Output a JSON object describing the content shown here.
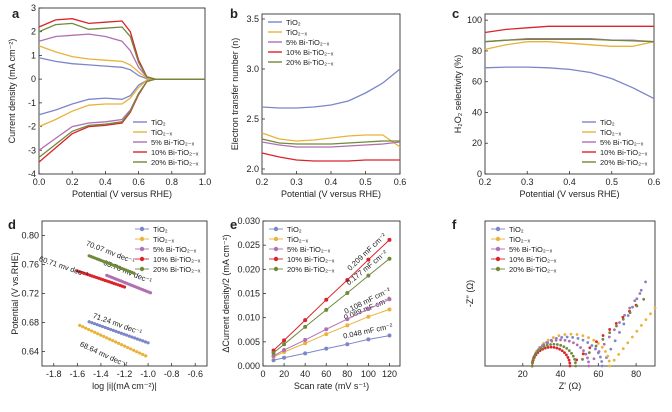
{
  "colors": {
    "TiO2": "#7b86c9",
    "TiO2-x": "#e9b23a",
    "5Bi": "#b16fb3",
    "10Bi": "#d9242c",
    "20Bi": "#70893b"
  },
  "chart_data": [
    {
      "id": "a",
      "letter": "a",
      "type": "line",
      "xlabel": "Potential (V versus RHE)",
      "ylabel": "Current density (mA cm⁻²)",
      "xlim": [
        0.0,
        1.0
      ],
      "ylim": [
        -4,
        3
      ],
      "xticks": [
        0.0,
        0.2,
        0.4,
        0.6,
        0.8,
        1.0
      ],
      "yticks": [
        -4,
        -3,
        -2,
        -1,
        0,
        1,
        2,
        3
      ],
      "xtick_labels": [
        "0.0",
        "0.2",
        "0.4",
        "0.6",
        "0.8",
        "1.0"
      ],
      "ytick_labels": [
        "-4",
        "-3",
        "-2",
        "-1",
        "0",
        "1",
        "2",
        "3"
      ],
      "legend": [
        "TiO₂",
        "TiO₂₋ₓ",
        "5% Bi-TiO₂₋ₓ",
        "10% Bi-TiO₂₋ₓ",
        "20% Bi-TiO₂₋ₓ"
      ],
      "legend_position": "bottom-right",
      "x": [
        0.0,
        0.1,
        0.2,
        0.3,
        0.4,
        0.5,
        0.55,
        0.6,
        0.65,
        0.7,
        0.8,
        1.0
      ],
      "series": [
        {
          "name": "TiO₂",
          "color_key": "TiO2",
          "anodic": [
            0.9,
            0.75,
            0.65,
            0.6,
            0.55,
            0.5,
            0.4,
            0.15,
            0.02,
            0.0,
            0.0,
            0.0
          ],
          "cathodic": [
            -1.5,
            -1.3,
            -1.05,
            -0.85,
            -0.8,
            -0.85,
            -0.7,
            -0.25,
            -0.05,
            0.0,
            0.0,
            0.0
          ]
        },
        {
          "name": "TiO₂₋ₓ",
          "color_key": "TiO2-x",
          "anodic": [
            1.4,
            1.15,
            0.95,
            0.85,
            0.8,
            0.75,
            0.6,
            0.3,
            0.05,
            0.0,
            0.0,
            0.0
          ],
          "cathodic": [
            -2.0,
            -1.7,
            -1.35,
            -1.1,
            -1.05,
            -1.05,
            -0.8,
            -0.35,
            -0.05,
            0.0,
            0.0,
            0.0
          ]
        },
        {
          "name": "5% Bi-TiO₂₋ₓ",
          "color_key": "5Bi",
          "anodic": [
            1.6,
            1.8,
            1.85,
            1.9,
            1.8,
            1.6,
            1.2,
            0.5,
            0.08,
            0.0,
            0.0,
            0.0
          ],
          "cathodic": [
            -3.0,
            -2.5,
            -2.0,
            -1.85,
            -1.8,
            -1.7,
            -1.3,
            -0.6,
            -0.1,
            0.0,
            0.0,
            0.0
          ]
        },
        {
          "name": "10% Bi-TiO₂₋ₓ",
          "color_key": "10Bi",
          "anodic": [
            2.2,
            2.5,
            2.55,
            2.35,
            2.4,
            2.45,
            2.0,
            0.8,
            0.1,
            0.0,
            0.0,
            0.0
          ],
          "cathodic": [
            -3.5,
            -2.9,
            -2.3,
            -2.0,
            -1.95,
            -1.85,
            -1.4,
            -0.65,
            -0.1,
            0.0,
            0.0,
            0.0
          ]
        },
        {
          "name": "20% Bi-TiO₂₋ₓ",
          "color_key": "20Bi",
          "anodic": [
            2.0,
            2.3,
            2.35,
            2.1,
            2.15,
            2.2,
            1.8,
            0.7,
            0.08,
            0.0,
            0.0,
            0.0
          ],
          "cathodic": [
            -3.3,
            -2.75,
            -2.2,
            -1.95,
            -1.9,
            -1.8,
            -1.35,
            -0.6,
            -0.1,
            0.0,
            0.0,
            0.0
          ]
        }
      ]
    },
    {
      "id": "b",
      "letter": "b",
      "type": "line",
      "xlabel": "Potential (V versus RHE)",
      "ylabel": "Electron transfer number (n)",
      "xlim": [
        0.2,
        0.6
      ],
      "ylim": [
        1.95,
        3.55
      ],
      "xticks": [
        0.2,
        0.3,
        0.4,
        0.5,
        0.6
      ],
      "yticks": [
        2.0,
        2.5,
        3.0,
        3.5
      ],
      "xtick_labels": [
        "0.2",
        "0.3",
        "0.4",
        "0.5",
        "0.6"
      ],
      "ytick_labels": [
        "2.0",
        "2.5",
        "3.0",
        "3.5"
      ],
      "legend": [
        "TiO₂",
        "TiO₂₋ₓ",
        "5% Bi-TiO₂₋ₓ",
        "10% Bi-TiO₂₋ₓ",
        "20% Bi-TiO₂₋ₓ"
      ],
      "legend_position": "top-left",
      "x": [
        0.2,
        0.25,
        0.3,
        0.35,
        0.4,
        0.45,
        0.5,
        0.55,
        0.6
      ],
      "series": [
        {
          "name": "TiO₂",
          "color_key": "TiO2",
          "values": [
            2.62,
            2.61,
            2.61,
            2.62,
            2.64,
            2.68,
            2.76,
            2.86,
            3.0
          ]
        },
        {
          "name": "TiO₂₋ₓ",
          "color_key": "TiO2-x",
          "values": [
            2.36,
            2.3,
            2.28,
            2.29,
            2.31,
            2.33,
            2.34,
            2.34,
            2.22
          ]
        },
        {
          "name": "5% Bi-TiO₂₋ₓ",
          "color_key": "5Bi",
          "values": [
            2.27,
            2.24,
            2.22,
            2.22,
            2.22,
            2.23,
            2.24,
            2.25,
            2.27
          ]
        },
        {
          "name": "10% Bi-TiO₂₋ₓ",
          "color_key": "10Bi",
          "values": [
            2.16,
            2.12,
            2.09,
            2.08,
            2.08,
            2.08,
            2.09,
            2.09,
            2.09
          ]
        },
        {
          "name": "20% Bi-TiO₂₋ₓ",
          "color_key": "20Bi",
          "values": [
            2.3,
            2.26,
            2.25,
            2.25,
            2.25,
            2.26,
            2.27,
            2.28,
            2.28
          ]
        }
      ]
    },
    {
      "id": "c",
      "letter": "c",
      "type": "line",
      "xlabel": "Potential (V versus RHE)",
      "ylabel": "H₂O₂ selectivity (%)",
      "xlim": [
        0.2,
        0.6
      ],
      "ylim": [
        0,
        104
      ],
      "xticks": [
        0.2,
        0.3,
        0.4,
        0.5,
        0.6
      ],
      "yticks": [
        0,
        20,
        40,
        60,
        80,
        100
      ],
      "xtick_labels": [
        "0.2",
        "0.3",
        "0.4",
        "0.5",
        "0.6"
      ],
      "ytick_labels": [
        "0",
        "20",
        "40",
        "60",
        "80",
        "100"
      ],
      "legend": [
        "TiO₂",
        "TiO₂₋ₓ",
        "5% Bi-TiO₂₋ₓ",
        "10% Bi-TiO₂₋ₓ",
        "20% Bi-TiO₂₋ₓ"
      ],
      "legend_position": "bottom-right",
      "x": [
        0.2,
        0.25,
        0.3,
        0.35,
        0.4,
        0.45,
        0.5,
        0.55,
        0.6
      ],
      "series": [
        {
          "name": "TiO₂",
          "color_key": "TiO2",
          "values": [
            69,
            69.5,
            69.5,
            69,
            68,
            66,
            62,
            56,
            49
          ]
        },
        {
          "name": "TiO₂₋ₓ",
          "color_key": "TiO2-x",
          "values": [
            81,
            84,
            86,
            86,
            85,
            84,
            83,
            83,
            86
          ]
        },
        {
          "name": "5% Bi-TiO₂₋ₓ",
          "color_key": "5Bi",
          "values": [
            86,
            87,
            88,
            88,
            88,
            88,
            87,
            87,
            86
          ]
        },
        {
          "name": "10% Bi-TiO₂₋ₓ",
          "color_key": "10Bi",
          "values": [
            92,
            94,
            95,
            96,
            96,
            96,
            96,
            96,
            96
          ]
        },
        {
          "name": "20% Bi-TiO₂₋ₓ",
          "color_key": "20Bi",
          "values": [
            86,
            87,
            87.5,
            87.5,
            87.5,
            87.5,
            87,
            86.5,
            86
          ]
        }
      ]
    },
    {
      "id": "d",
      "letter": "d",
      "type": "scatter",
      "xlabel": "log |i|(mA cm⁻²)|",
      "ylabel": "Potential (V vs.RHE)",
      "xlim": [
        -1.9,
        -0.5
      ],
      "ylim": [
        0.62,
        0.82
      ],
      "xticks": [
        -1.8,
        -1.6,
        -1.4,
        -1.2,
        -1.0,
        -0.8,
        -0.6
      ],
      "yticks": [
        0.64,
        0.68,
        0.72,
        0.76,
        0.8
      ],
      "xtick_labels": [
        "-1.8",
        "-1.6",
        "-1.4",
        "-1.2",
        "-1.0",
        "-0.8",
        "-0.6"
      ],
      "ytick_labels": [
        "0.64",
        "0.68",
        "0.72",
        "0.76",
        "0.80"
      ],
      "legend": [
        "TiO₂",
        "TiO₂₋ₓ",
        "5% Bi-TiO₂₋ₓ",
        "10% Bi-TiO₂₋ₓ",
        "20% Bi-TiO₂₋ₓ"
      ],
      "legend_position": "top-right",
      "series": [
        {
          "name": "TiO₂",
          "color_key": "TiO2",
          "x_range": [
            -1.5,
            -1.0
          ],
          "y_range": [
            0.681,
            0.652
          ],
          "annotation": "71.24 mv dec⁻¹"
        },
        {
          "name": "TiO₂₋ₓ",
          "color_key": "TiO2-x",
          "x_range": [
            -1.58,
            -1.02
          ],
          "y_range": [
            0.676,
            0.634
          ],
          "annotation": "68.64 mv dec⁻¹"
        },
        {
          "name": "5% Bi-TiO₂₋ₓ",
          "color_key": "5Bi",
          "x_range": [
            -1.35,
            -0.98
          ],
          "y_range": [
            0.745,
            0.721
          ],
          "annotation": "65.76 mv dec⁻¹"
        },
        {
          "name": "10% Bi-TiO₂₋ₓ",
          "color_key": "10Bi",
          "x_range": [
            -1.6,
            -1.2
          ],
          "y_range": [
            0.751,
            0.729
          ],
          "annotation": "60.71 mv dec⁻¹"
        },
        {
          "name": "20% Bi-TiO₂₋ₓ",
          "color_key": "20Bi",
          "x_range": [
            -1.5,
            -1.12
          ],
          "y_range": [
            0.772,
            0.748
          ],
          "annotation": "70.07 mv dec⁻¹"
        }
      ]
    },
    {
      "id": "e",
      "letter": "e",
      "type": "scatter",
      "xlabel": "Scan rate (mV s⁻¹)",
      "ylabel": "ΔCurrent density/2 (mA cm⁻²)",
      "xlim": [
        0,
        130
      ],
      "ylim": [
        0,
        0.03
      ],
      "xticks": [
        0,
        20,
        40,
        60,
        80,
        100,
        120
      ],
      "yticks": [
        0.0,
        0.005,
        0.01,
        0.015,
        0.02,
        0.025,
        0.03
      ],
      "xtick_labels": [
        "0",
        "20",
        "40",
        "60",
        "80",
        "100",
        "120"
      ],
      "ytick_labels": [
        "0.000",
        "0.005",
        "0.010",
        "0.015",
        "0.020",
        "0.025",
        "0.030"
      ],
      "legend": [
        "TiO₂",
        "TiO₂₋ₓ",
        "5% Bi-TiO₂₋ₓ",
        "10% Bi-TiO₂₋ₓ",
        "20% Bi-TiO₂₋ₓ"
      ],
      "legend_position": "top-left",
      "x": [
        10,
        20,
        40,
        60,
        80,
        100,
        120
      ],
      "series": [
        {
          "name": "TiO₂",
          "color_key": "TiO2",
          "values": [
            0.0012,
            0.0017,
            0.0026,
            0.0036,
            0.0045,
            0.0055,
            0.0063
          ],
          "annotation": "0.048 mF cm⁻²"
        },
        {
          "name": "TiO₂₋ₓ",
          "color_key": "TiO2-x",
          "values": [
            0.0019,
            0.0029,
            0.0047,
            0.0066,
            0.0084,
            0.0102,
            0.0117
          ],
          "annotation": "0.089 mF cm⁻²"
        },
        {
          "name": "5% Bi-TiO₂₋ₓ",
          "color_key": "5Bi",
          "values": [
            0.0021,
            0.0033,
            0.0054,
            0.0076,
            0.0097,
            0.0118,
            0.0138
          ],
          "annotation": "0.108 mF cm⁻²"
        },
        {
          "name": "10% Bi-TiO₂₋ₓ",
          "color_key": "10Bi",
          "values": [
            0.0032,
            0.0053,
            0.0095,
            0.0137,
            0.0178,
            0.022,
            0.0261
          ],
          "annotation": "0.209 mF cm⁻²"
        },
        {
          "name": "20% Bi-TiO₂₋ₓ",
          "color_key": "20Bi",
          "values": [
            0.0027,
            0.0045,
            0.0081,
            0.0116,
            0.0151,
            0.0187,
            0.0222
          ],
          "annotation": "0.177 mF cm⁻²"
        }
      ]
    },
    {
      "id": "f",
      "letter": "f",
      "type": "scatter",
      "xlabel": "Z' (Ω)",
      "ylabel": "-Z'' (Ω)",
      "xlim": [
        0,
        90
      ],
      "ylim": [
        0,
        100
      ],
      "xticks": [
        20,
        40,
        60,
        80
      ],
      "yticks": [],
      "xtick_labels": [
        "20",
        "40",
        "60",
        "80"
      ],
      "ytick_labels": [],
      "legend": [
        "TiO₂",
        "TiO₂₋ₓ",
        "5% Bi-TiO₂₋ₓ",
        "10% Bi-TiO₂₋ₓ",
        "20% Bi-TiO₂₋ₓ"
      ],
      "legend_position": "top-left",
      "series": [
        {
          "name": "TiO₂",
          "color_key": "TiO2",
          "arc_start": 25,
          "arc_end": 62,
          "arc_height": 20,
          "tail_end": [
            85,
            58
          ]
        },
        {
          "name": "TiO₂₋ₓ",
          "color_key": "TiO2-x",
          "arc_start": 25,
          "arc_end": 66,
          "arc_height": 22,
          "tail_end": [
            90,
            40
          ]
        },
        {
          "name": "5% Bi-TiO₂₋ₓ",
          "color_key": "5Bi",
          "arc_start": 25,
          "arc_end": 55,
          "arc_height": 18,
          "tail_end": [
            82,
            50
          ]
        },
        {
          "name": "10% Bi-TiO₂₋ₓ",
          "color_key": "10Bi",
          "arc_start": 25,
          "arc_end": 45,
          "arc_height": 13,
          "tail_end": [
            80,
            42
          ]
        },
        {
          "name": "20% Bi-TiO₂₋ₓ",
          "color_key": "20Bi",
          "arc_start": 25,
          "arc_end": 48,
          "arc_height": 15,
          "tail_end": [
            84,
            46
          ]
        }
      ]
    }
  ]
}
